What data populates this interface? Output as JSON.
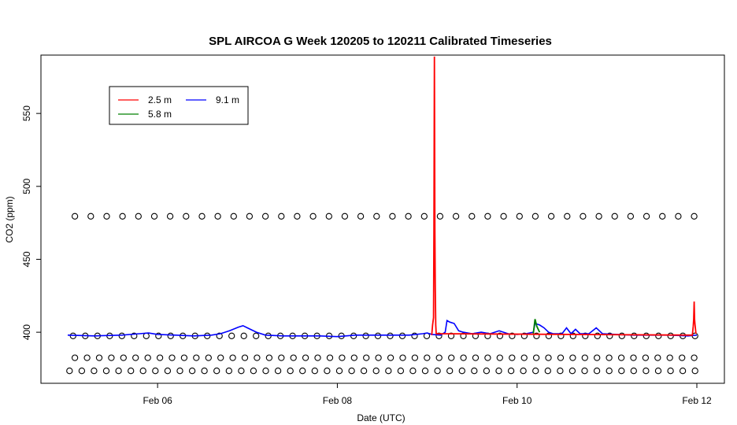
{
  "chart_data": {
    "type": "line",
    "title": "SPL AIRCOA G  Week 120205 to 120211  Calibrated Timeseries",
    "xlabel": "Date (UTC)",
    "ylabel": "CO2 (ppm)",
    "xlim": [
      5.0,
      12.1
    ],
    "ylim": [
      365,
      590
    ],
    "x_ticks": [
      {
        "value": 6,
        "label": "Feb 06"
      },
      {
        "value": 8,
        "label": "Feb 08"
      },
      {
        "value": 10,
        "label": "Feb 10"
      },
      {
        "value": 12,
        "label": "Feb 12"
      }
    ],
    "y_ticks": [
      {
        "value": 400,
        "label": "400"
      },
      {
        "value": 450,
        "label": "450"
      },
      {
        "value": 500,
        "label": "500"
      },
      {
        "value": 550,
        "label": "550"
      }
    ],
    "legend": {
      "placement": "top-left",
      "entries": [
        {
          "label": "2.5 m",
          "color": "#ff0000"
        },
        {
          "label": "5.8 m",
          "color": "#008000"
        },
        {
          "label": "9.1 m",
          "color": "#0000ff"
        }
      ]
    },
    "series": [
      {
        "name": "2.5 m",
        "color": "#ff0000",
        "points": [
          [
            9.05,
            398
          ],
          [
            9.06,
            405
          ],
          [
            9.07,
            410
          ],
          [
            9.075,
            470
          ],
          [
            9.08,
            589
          ],
          [
            9.085,
            470
          ],
          [
            9.09,
            430
          ],
          [
            9.095,
            405
          ],
          [
            9.1,
            399
          ],
          [
            11.95,
            398
          ],
          [
            11.96,
            404
          ],
          [
            11.965,
            409
          ],
          [
            11.97,
            421
          ],
          [
            11.975,
            409
          ],
          [
            11.98,
            405
          ],
          [
            11.99,
            399
          ]
        ]
      },
      {
        "name": "5.8 m",
        "color": "#008000",
        "points": [
          [
            10.18,
            399
          ],
          [
            10.2,
            409
          ],
          [
            10.22,
            404
          ],
          [
            10.25,
            400
          ]
        ]
      },
      {
        "name": "9.1 m",
        "color": "#0000ff",
        "points": [
          [
            5.0,
            398
          ],
          [
            5.3,
            397.5
          ],
          [
            5.6,
            398
          ],
          [
            5.8,
            399
          ],
          [
            5.9,
            399.5
          ],
          [
            6.0,
            398.5
          ],
          [
            6.2,
            398
          ],
          [
            6.4,
            397.5
          ],
          [
            6.6,
            398
          ],
          [
            6.7,
            399
          ],
          [
            6.8,
            401
          ],
          [
            6.9,
            403.5
          ],
          [
            6.95,
            404.5
          ],
          [
            7.0,
            403
          ],
          [
            7.1,
            400
          ],
          [
            7.2,
            398
          ],
          [
            7.4,
            397.5
          ],
          [
            7.6,
            397.5
          ],
          [
            7.8,
            397.5
          ],
          [
            8.0,
            397
          ],
          [
            8.2,
            398
          ],
          [
            8.5,
            398
          ],
          [
            8.8,
            398
          ],
          [
            8.95,
            399
          ],
          [
            9.0,
            399.5
          ],
          [
            9.05,
            398.5
          ],
          [
            9.15,
            398
          ],
          [
            9.2,
            400
          ],
          [
            9.22,
            408
          ],
          [
            9.25,
            407
          ],
          [
            9.3,
            406
          ],
          [
            9.35,
            401
          ],
          [
            9.4,
            400
          ],
          [
            9.5,
            399
          ],
          [
            9.6,
            400
          ],
          [
            9.7,
            399
          ],
          [
            9.8,
            401
          ],
          [
            9.9,
            399
          ],
          [
            10.0,
            398.5
          ],
          [
            10.1,
            399
          ],
          [
            10.18,
            400
          ],
          [
            10.2,
            406
          ],
          [
            10.25,
            405
          ],
          [
            10.3,
            403
          ],
          [
            10.35,
            400
          ],
          [
            10.4,
            399
          ],
          [
            10.5,
            399
          ],
          [
            10.55,
            403
          ],
          [
            10.6,
            399
          ],
          [
            10.65,
            402
          ],
          [
            10.7,
            399
          ],
          [
            10.8,
            399
          ],
          [
            10.88,
            403
          ],
          [
            10.95,
            399
          ],
          [
            11.1,
            398.5
          ],
          [
            11.3,
            398
          ],
          [
            11.5,
            398
          ],
          [
            11.7,
            398
          ],
          [
            11.9,
            397.5
          ],
          [
            12.0,
            398
          ]
        ]
      }
    ],
    "marker_rows": [
      {
        "y": 479.5,
        "x_start": 5.08,
        "x_end": 11.97,
        "count": 40
      },
      {
        "y": 397.5,
        "x_start": 5.06,
        "x_end": 11.98,
        "count": 52
      },
      {
        "y": 382.5,
        "x_start": 5.08,
        "x_end": 11.97,
        "count": 52
      },
      {
        "y": 373.5,
        "x_start": 5.02,
        "x_end": 11.98,
        "count": 52
      }
    ]
  }
}
